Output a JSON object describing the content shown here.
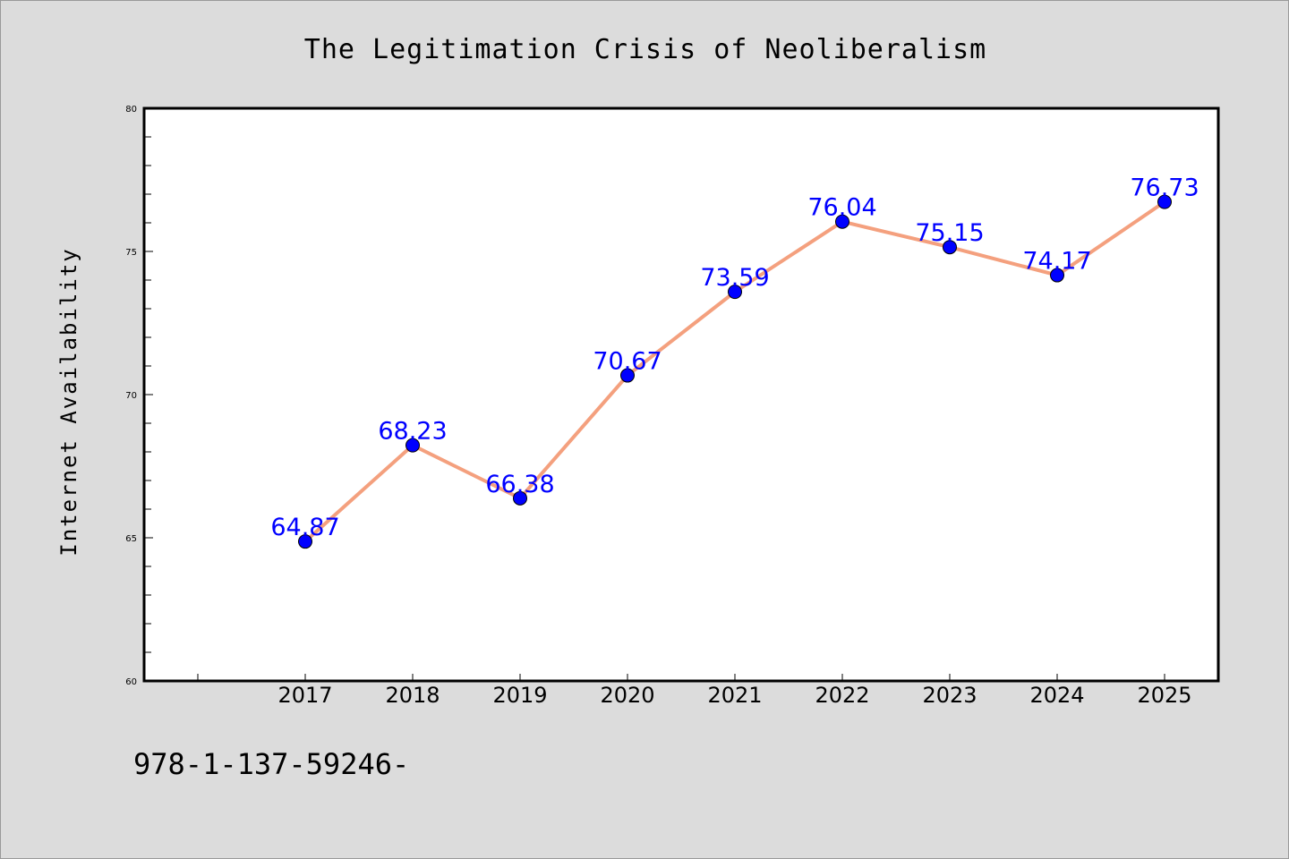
{
  "colors": {
    "background": "#dcdcdc",
    "plot_background": "#ffffff",
    "line": "#f4a07e",
    "marker": "#0000ff",
    "data_label": "#0000ff",
    "axis": "#000000"
  },
  "footer_text": "978-1-137-59246-",
  "chart_data": {
    "type": "line",
    "title": "The Legitimation Crisis of Neoliberalism",
    "xlabel": "",
    "ylabel": "Internet Availability",
    "categories": [
      "2017",
      "2018",
      "2019",
      "2020",
      "2021",
      "2022",
      "2023",
      "2024",
      "2025"
    ],
    "series": [
      {
        "values": [
          64.87,
          68.23,
          66.38,
          70.67,
          73.59,
          76.04,
          75.15,
          74.17,
          76.73
        ],
        "data_labels": [
          "64.87",
          "68.23",
          "66.38",
          "70.67",
          "73.59",
          "76.04",
          "75.15",
          "74.17",
          "76.73"
        ]
      }
    ],
    "ylim": [
      60,
      80
    ],
    "yticks": [
      "60",
      "65",
      "70",
      "75",
      "80"
    ],
    "grid": false,
    "legend": "none"
  }
}
